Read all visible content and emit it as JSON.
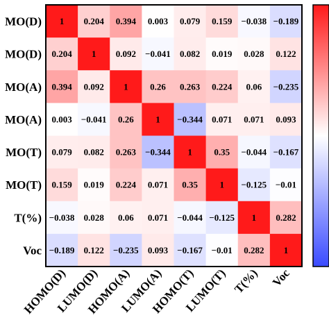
{
  "chart_data": {
    "type": "heatmap",
    "title": "",
    "row_labels": [
      "MO(D)",
      "MO(D)",
      "MO(A)",
      "MO(A)",
      "MO(T)",
      "MO(T)",
      "T(%)",
      "Voc"
    ],
    "col_labels": [
      "HOMO(D)",
      "LUMO(D)",
      "HOMO(A)",
      "LUMO(A)",
      "HOMO(T)",
      "LUMO(T)",
      "T(%)",
      "Voc"
    ],
    "matrix": [
      [
        1,
        0.204,
        0.394,
        0.003,
        0.079,
        0.159,
        -0.038,
        -0.189
      ],
      [
        0.204,
        1,
        0.092,
        -0.041,
        0.082,
        0.019,
        0.028,
        0.122
      ],
      [
        0.394,
        0.092,
        1,
        0.26,
        0.263,
        0.224,
        0.06,
        -0.235
      ],
      [
        0.003,
        -0.041,
        0.26,
        1,
        -0.344,
        0.071,
        0.071,
        0.093
      ],
      [
        0.079,
        0.082,
        0.263,
        -0.344,
        1,
        0.35,
        -0.044,
        -0.167
      ],
      [
        0.159,
        0.019,
        0.224,
        0.071,
        0.35,
        1,
        -0.125,
        -0.01
      ],
      [
        -0.038,
        0.028,
        0.06,
        0.071,
        -0.044,
        -0.125,
        1,
        0.282
      ],
      [
        -0.189,
        0.122,
        -0.235,
        0.093,
        -0.167,
        -0.01,
        0.282,
        1
      ]
    ],
    "value_labels": [
      [
        "1",
        "0.204",
        "0.394",
        "0.003",
        "0.079",
        "0.159",
        "−0.038",
        "−0.189"
      ],
      [
        "0.204",
        "1",
        "0.092",
        "−0.041",
        "0.082",
        "0.019",
        "0.028",
        "0.122"
      ],
      [
        "0.394",
        "0.092",
        "1",
        "0.26",
        "0.263",
        "0.224",
        "0.06",
        "−0.235"
      ],
      [
        "0.003",
        "−0.041",
        "0.26",
        "1",
        "−0.344",
        "0.071",
        "0.071",
        "0.093"
      ],
      [
        "0.079",
        "0.082",
        "0.263",
        "−0.344",
        "1",
        "0.35",
        "−0.044",
        "−0.167"
      ],
      [
        "0.159",
        "0.019",
        "0.224",
        "0.071",
        "0.35",
        "1",
        "−0.125",
        "−0.01"
      ],
      [
        "−0.038",
        "0.028",
        "0.06",
        "0.071",
        "−0.044",
        "−0.125",
        "1",
        "0.282"
      ],
      [
        "−0.189",
        "0.122",
        "−0.235",
        "0.093",
        "−0.167",
        "−0.01",
        "0.282",
        "1"
      ]
    ],
    "color_scale": {
      "min": -1,
      "max": 1,
      "negative": "#3a4bff",
      "zero": "#ffffff",
      "positive": "#ff1a1a"
    },
    "colorbar": "right"
  }
}
